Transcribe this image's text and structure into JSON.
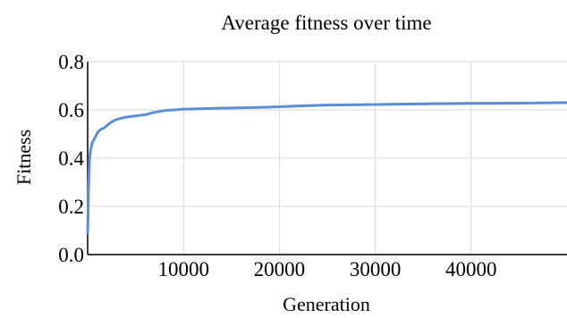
{
  "chart_data": {
    "type": "line",
    "title": "Average fitness over time",
    "xlabel": "Generation",
    "ylabel": "Fitness",
    "xlim": [
      0,
      50000
    ],
    "ylim": [
      0.0,
      0.8
    ],
    "x_ticks": [
      10000,
      20000,
      30000,
      40000
    ],
    "x_tick_labels": [
      "10000",
      "20000",
      "30000",
      "40000"
    ],
    "y_ticks": [
      0.0,
      0.2,
      0.4,
      0.6,
      0.8
    ],
    "y_tick_labels": [
      "0.0",
      "0.2",
      "0.4",
      "0.6",
      "0.8"
    ],
    "grid": true,
    "legend": "none",
    "colors": {
      "series": "#5b8dd9",
      "grid": "#d9d9d9",
      "axis": "#000000"
    },
    "series": [
      {
        "x": [
          0,
          50,
          100,
          150,
          200,
          300,
          400,
          500,
          700,
          900,
          1100,
          1400,
          1700,
          2000,
          2500,
          3000,
          3500,
          4000,
          5000,
          6000,
          7000,
          8000,
          9000,
          10000,
          12000,
          15000,
          18000,
          20000,
          22000,
          25000,
          30000,
          35000,
          40000,
          45000,
          50000
        ],
        "values": [
          0.09,
          0.18,
          0.28,
          0.35,
          0.4,
          0.43,
          0.45,
          0.465,
          0.48,
          0.495,
          0.51,
          0.52,
          0.525,
          0.535,
          0.55,
          0.56,
          0.565,
          0.57,
          0.575,
          0.58,
          0.59,
          0.597,
          0.6,
          0.603,
          0.605,
          0.608,
          0.61,
          0.613,
          0.616,
          0.62,
          0.622,
          0.625,
          0.627,
          0.628,
          0.63
        ]
      }
    ]
  }
}
